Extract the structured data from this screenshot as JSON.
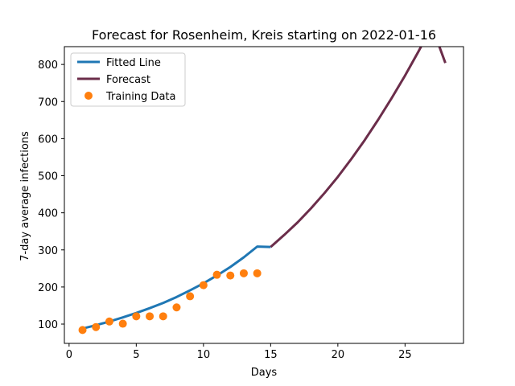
{
  "chart_data": {
    "type": "line",
    "title": "Forecast for Rosenheim, Kreis starting on 2022-01-16",
    "xlabel": "Days",
    "ylabel": "7-day average infections",
    "xlim": [
      -0.35,
      29.35
    ],
    "ylim": [
      48,
      848
    ],
    "xticks": [
      0,
      5,
      10,
      15,
      20,
      25
    ],
    "yticks": [
      100,
      200,
      300,
      400,
      500,
      600,
      700,
      800
    ],
    "grid": false,
    "legend_position": "top-left",
    "colors": {
      "fitted": "#1f77b4",
      "forecast": "#6b2d4a",
      "training": "#ff7f0e"
    },
    "series": [
      {
        "name": "Fitted Line",
        "kind": "line",
        "x": [
          1,
          2,
          3,
          4,
          5,
          6,
          7,
          8,
          9,
          10,
          11,
          12,
          13,
          14,
          15
        ],
        "y": [
          88,
          97,
          107,
          118,
          130,
          143,
          157,
          173,
          191,
          210,
          231,
          254,
          280,
          309,
          308
        ]
      },
      {
        "name": "Forecast",
        "kind": "line",
        "x": [
          15,
          16,
          17,
          18,
          19,
          20,
          21,
          22,
          23,
          24,
          25,
          26,
          27,
          28
        ],
        "y": [
          308,
          340,
          374,
          412,
          453,
          497,
          545,
          596,
          651,
          709,
          770,
          835,
          903,
          804
        ]
      },
      {
        "name": "Training Data",
        "kind": "scatter",
        "x": [
          1,
          2,
          3,
          4,
          5,
          6,
          7,
          8,
          9,
          10,
          11,
          12,
          13,
          14
        ],
        "y": [
          84,
          92,
          107,
          101,
          121,
          121,
          121,
          145,
          175,
          205,
          233,
          231,
          237,
          237
        ]
      }
    ]
  }
}
